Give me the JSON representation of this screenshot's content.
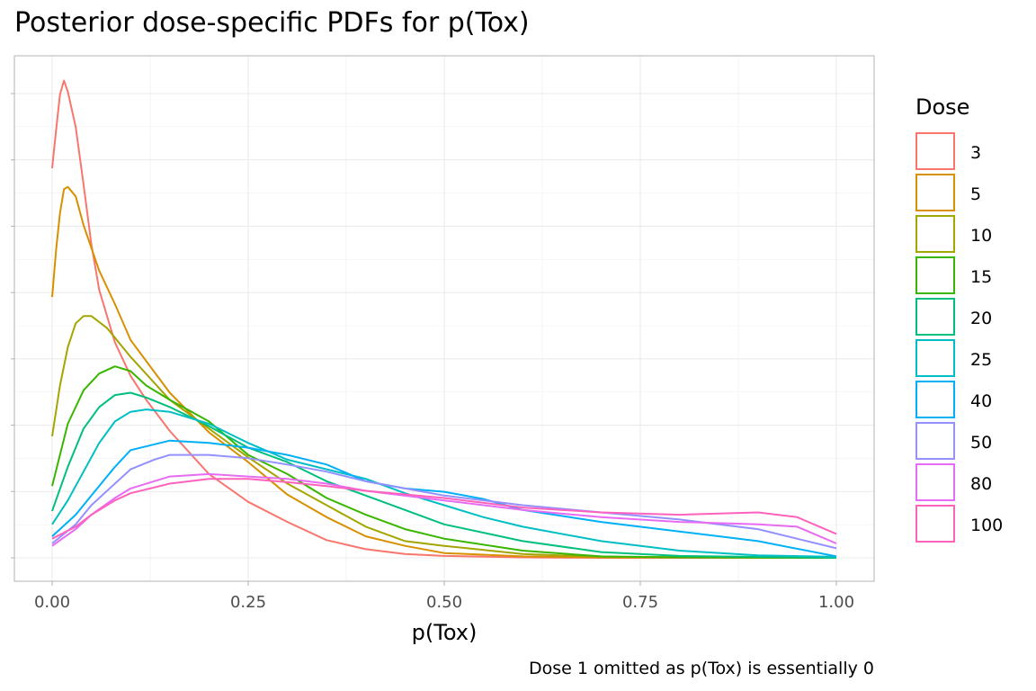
{
  "chart_data": {
    "type": "line",
    "title": "Posterior dose-specific PDFs for p(Tox)",
    "xlabel": "p(Tox)",
    "ylabel": "",
    "caption": "Dose 1 omitted as p(Tox) is essentially 0",
    "xlim": [
      0,
      1
    ],
    "ylim": [
      0,
      1
    ],
    "x_ticks": [
      "0.00",
      "0.25",
      "0.50",
      "0.75",
      "1.00"
    ],
    "x_tick_values": [
      0,
      0.25,
      0.5,
      0.75,
      1.0
    ],
    "y_ticks_shown": false,
    "grid": true,
    "legend": {
      "title": "Dose",
      "position": "right"
    },
    "series": [
      {
        "name": "3",
        "color": "#F8766D",
        "points": [
          [
            0,
            0.814
          ],
          [
            0.005,
            0.894
          ],
          [
            0.01,
            0.968
          ],
          [
            0.015,
            0.997
          ],
          [
            0.02,
            0.974
          ],
          [
            0.03,
            0.9
          ],
          [
            0.04,
            0.78
          ],
          [
            0.05,
            0.655
          ],
          [
            0.06,
            0.56
          ],
          [
            0.08,
            0.45
          ],
          [
            0.1,
            0.38
          ],
          [
            0.12,
            0.33
          ],
          [
            0.15,
            0.265
          ],
          [
            0.2,
            0.175
          ],
          [
            0.25,
            0.117
          ],
          [
            0.3,
            0.075
          ],
          [
            0.35,
            0.037
          ],
          [
            0.4,
            0.018
          ],
          [
            0.45,
            0.008
          ],
          [
            0.5,
            0.004
          ],
          [
            0.6,
            0.001
          ],
          [
            0.7,
            0
          ],
          [
            1.0,
            0
          ]
        ]
      },
      {
        "name": "5",
        "color": "#D89000",
        "points": [
          [
            0,
            0.545
          ],
          [
            0.005,
            0.644
          ],
          [
            0.01,
            0.72
          ],
          [
            0.015,
            0.77
          ],
          [
            0.02,
            0.775
          ],
          [
            0.03,
            0.755
          ],
          [
            0.04,
            0.695
          ],
          [
            0.06,
            0.6
          ],
          [
            0.08,
            0.53
          ],
          [
            0.1,
            0.455
          ],
          [
            0.15,
            0.345
          ],
          [
            0.2,
            0.262
          ],
          [
            0.25,
            0.2
          ],
          [
            0.3,
            0.132
          ],
          [
            0.35,
            0.085
          ],
          [
            0.4,
            0.045
          ],
          [
            0.45,
            0.025
          ],
          [
            0.5,
            0.01
          ],
          [
            0.6,
            0.003
          ],
          [
            0.7,
            0.001
          ],
          [
            1.0,
            0
          ]
        ]
      },
      {
        "name": "10",
        "color": "#A3A500",
        "points": [
          [
            0,
            0.254
          ],
          [
            0.01,
            0.36
          ],
          [
            0.02,
            0.44
          ],
          [
            0.03,
            0.49
          ],
          [
            0.04,
            0.505
          ],
          [
            0.05,
            0.505
          ],
          [
            0.07,
            0.48
          ],
          [
            0.1,
            0.42
          ],
          [
            0.15,
            0.33
          ],
          [
            0.2,
            0.27
          ],
          [
            0.25,
            0.21
          ],
          [
            0.3,
            0.155
          ],
          [
            0.35,
            0.11
          ],
          [
            0.4,
            0.065
          ],
          [
            0.45,
            0.035
          ],
          [
            0.5,
            0.025
          ],
          [
            0.6,
            0.008
          ],
          [
            0.7,
            0.002
          ],
          [
            1.0,
            0
          ]
        ]
      },
      {
        "name": "15",
        "color": "#39B600",
        "points": [
          [
            0,
            0.15
          ],
          [
            0.02,
            0.28
          ],
          [
            0.04,
            0.35
          ],
          [
            0.06,
            0.385
          ],
          [
            0.08,
            0.4
          ],
          [
            0.1,
            0.39
          ],
          [
            0.12,
            0.36
          ],
          [
            0.15,
            0.33
          ],
          [
            0.2,
            0.285
          ],
          [
            0.25,
            0.215
          ],
          [
            0.3,
            0.175
          ],
          [
            0.35,
            0.125
          ],
          [
            0.4,
            0.09
          ],
          [
            0.45,
            0.06
          ],
          [
            0.5,
            0.04
          ],
          [
            0.6,
            0.015
          ],
          [
            0.7,
            0.003
          ],
          [
            0.8,
            0.001
          ],
          [
            1.0,
            0
          ]
        ]
      },
      {
        "name": "20",
        "color": "#00BF7D",
        "points": [
          [
            0,
            0.098
          ],
          [
            0.02,
            0.19
          ],
          [
            0.04,
            0.27
          ],
          [
            0.06,
            0.315
          ],
          [
            0.08,
            0.34
          ],
          [
            0.1,
            0.345
          ],
          [
            0.12,
            0.335
          ],
          [
            0.15,
            0.315
          ],
          [
            0.2,
            0.275
          ],
          [
            0.25,
            0.23
          ],
          [
            0.3,
            0.2
          ],
          [
            0.35,
            0.16
          ],
          [
            0.4,
            0.13
          ],
          [
            0.45,
            0.1
          ],
          [
            0.5,
            0.07
          ],
          [
            0.6,
            0.035
          ],
          [
            0.7,
            0.012
          ],
          [
            0.8,
            0.004
          ],
          [
            1.0,
            0
          ]
        ]
      },
      {
        "name": "25",
        "color": "#00BFC4",
        "points": [
          [
            0,
            0.07
          ],
          [
            0.02,
            0.12
          ],
          [
            0.04,
            0.18
          ],
          [
            0.06,
            0.24
          ],
          [
            0.08,
            0.285
          ],
          [
            0.1,
            0.305
          ],
          [
            0.12,
            0.31
          ],
          [
            0.15,
            0.305
          ],
          [
            0.2,
            0.28
          ],
          [
            0.25,
            0.24
          ],
          [
            0.3,
            0.205
          ],
          [
            0.35,
            0.185
          ],
          [
            0.4,
            0.165
          ],
          [
            0.45,
            0.135
          ],
          [
            0.5,
            0.11
          ],
          [
            0.55,
            0.085
          ],
          [
            0.6,
            0.065
          ],
          [
            0.7,
            0.035
          ],
          [
            0.8,
            0.015
          ],
          [
            0.9,
            0.005
          ],
          [
            1.0,
            0.002
          ]
        ]
      },
      {
        "name": "40",
        "color": "#00B0F6",
        "points": [
          [
            0,
            0.045
          ],
          [
            0.03,
            0.09
          ],
          [
            0.05,
            0.13
          ],
          [
            0.08,
            0.19
          ],
          [
            0.1,
            0.225
          ],
          [
            0.15,
            0.245
          ],
          [
            0.2,
            0.24
          ],
          [
            0.25,
            0.23
          ],
          [
            0.3,
            0.215
          ],
          [
            0.35,
            0.195
          ],
          [
            0.4,
            0.16
          ],
          [
            0.45,
            0.145
          ],
          [
            0.5,
            0.138
          ],
          [
            0.55,
            0.123
          ],
          [
            0.6,
            0.1
          ],
          [
            0.7,
            0.075
          ],
          [
            0.8,
            0.055
          ],
          [
            0.9,
            0.035
          ],
          [
            1.0,
            0.003
          ]
        ]
      },
      {
        "name": "50",
        "color": "#9590FF",
        "points": [
          [
            0,
            0.03
          ],
          [
            0.03,
            0.07
          ],
          [
            0.05,
            0.11
          ],
          [
            0.08,
            0.155
          ],
          [
            0.1,
            0.185
          ],
          [
            0.13,
            0.205
          ],
          [
            0.15,
            0.215
          ],
          [
            0.2,
            0.215
          ],
          [
            0.25,
            0.208
          ],
          [
            0.3,
            0.195
          ],
          [
            0.35,
            0.18
          ],
          [
            0.4,
            0.16
          ],
          [
            0.45,
            0.145
          ],
          [
            0.5,
            0.13
          ],
          [
            0.6,
            0.11
          ],
          [
            0.7,
            0.095
          ],
          [
            0.8,
            0.08
          ],
          [
            0.9,
            0.06
          ],
          [
            1.0,
            0.02
          ]
        ]
      },
      {
        "name": "80",
        "color": "#E76BF3",
        "points": [
          [
            0,
            0.025
          ],
          [
            0.03,
            0.06
          ],
          [
            0.05,
            0.09
          ],
          [
            0.08,
            0.125
          ],
          [
            0.1,
            0.145
          ],
          [
            0.15,
            0.17
          ],
          [
            0.2,
            0.175
          ],
          [
            0.25,
            0.17
          ],
          [
            0.3,
            0.165
          ],
          [
            0.35,
            0.155
          ],
          [
            0.4,
            0.14
          ],
          [
            0.5,
            0.12
          ],
          [
            0.6,
            0.1
          ],
          [
            0.7,
            0.085
          ],
          [
            0.8,
            0.075
          ],
          [
            0.9,
            0.07
          ],
          [
            0.95,
            0.065
          ],
          [
            1.0,
            0.03
          ]
        ]
      },
      {
        "name": "100",
        "color": "#FF62BC",
        "points": [
          [
            0,
            0.04
          ],
          [
            0.03,
            0.065
          ],
          [
            0.05,
            0.09
          ],
          [
            0.08,
            0.12
          ],
          [
            0.1,
            0.135
          ],
          [
            0.15,
            0.155
          ],
          [
            0.2,
            0.165
          ],
          [
            0.25,
            0.165
          ],
          [
            0.3,
            0.158
          ],
          [
            0.35,
            0.15
          ],
          [
            0.4,
            0.14
          ],
          [
            0.5,
            0.125
          ],
          [
            0.6,
            0.105
          ],
          [
            0.7,
            0.095
          ],
          [
            0.8,
            0.09
          ],
          [
            0.9,
            0.095
          ],
          [
            0.95,
            0.085
          ],
          [
            1.0,
            0.05
          ]
        ]
      }
    ]
  }
}
